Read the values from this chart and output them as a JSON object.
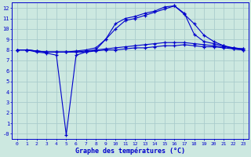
{
  "xlabel": "Graphe des températures (°C)",
  "bg_color": "#cce8e0",
  "grid_color": "#aacccc",
  "line_color": "#0000cc",
  "hours": [
    0,
    1,
    2,
    3,
    4,
    5,
    6,
    7,
    8,
    9,
    10,
    11,
    12,
    13,
    14,
    15,
    16,
    17,
    18,
    19,
    20,
    21,
    22,
    23
  ],
  "line_dip": [
    8.0,
    8.0,
    7.8,
    7.7,
    7.5,
    -0.1,
    7.5,
    7.8,
    8.0,
    9.0,
    10.5,
    11.0,
    11.2,
    11.5,
    11.7,
    12.1,
    12.2,
    11.4,
    10.5,
    9.4,
    8.8,
    8.4,
    8.1,
    8.0
  ],
  "line_rise": [
    8.0,
    8.0,
    7.9,
    7.8,
    7.8,
    7.8,
    7.9,
    8.0,
    8.2,
    9.0,
    10.0,
    10.8,
    11.0,
    11.3,
    11.6,
    11.9,
    12.2,
    11.5,
    9.5,
    8.8,
    8.6,
    8.4,
    8.2,
    8.1
  ],
  "line_flat1": [
    8.0,
    8.0,
    7.9,
    7.8,
    7.8,
    7.8,
    7.8,
    7.9,
    8.0,
    8.1,
    8.2,
    8.3,
    8.4,
    8.5,
    8.6,
    8.7,
    8.7,
    8.7,
    8.6,
    8.5,
    8.4,
    8.3,
    8.2,
    8.1
  ],
  "line_flat2": [
    8.0,
    8.0,
    7.9,
    7.8,
    7.8,
    7.8,
    7.8,
    7.8,
    7.9,
    8.0,
    8.0,
    8.1,
    8.2,
    8.2,
    8.3,
    8.4,
    8.4,
    8.5,
    8.4,
    8.3,
    8.3,
    8.2,
    8.1,
    8.0
  ],
  "ylim": [
    -0.5,
    12.5
  ],
  "ytick_vals": [
    0,
    1,
    2,
    3,
    4,
    5,
    6,
    7,
    8,
    9,
    10,
    11,
    12
  ],
  "ytick_labels": [
    "-0",
    "1",
    "2",
    "3",
    "4",
    "5",
    "6",
    "7",
    "8",
    "9",
    "10",
    "11",
    "12"
  ],
  "xlim": [
    -0.5,
    23.5
  ]
}
